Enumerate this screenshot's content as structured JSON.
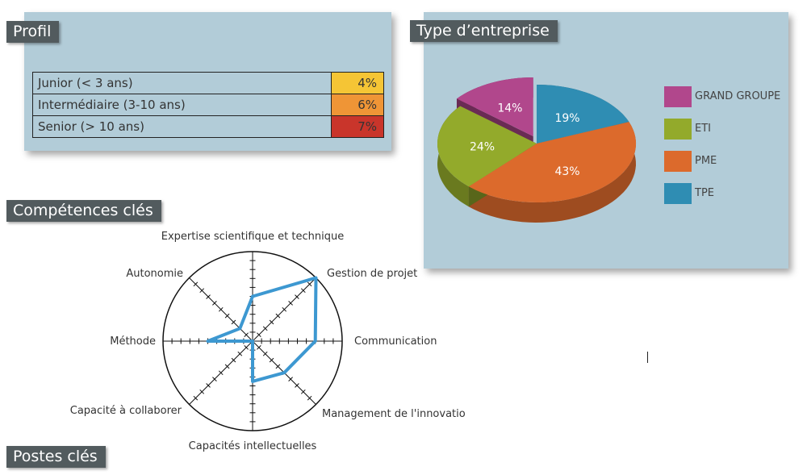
{
  "sections": {
    "profil": "Profil",
    "type_entreprise": "Type d’entreprise",
    "competences": "Compétences clés",
    "postes": "Postes clés"
  },
  "profil_table": [
    {
      "label": "Junior (< 3 ans)",
      "value": "4%",
      "color": "#f5c535"
    },
    {
      "label": "Intermédiaire (3-10 ans)",
      "value": "6%",
      "color": "#ef9536"
    },
    {
      "label": "Senior (> 10 ans)",
      "value": "7%",
      "color": "#c9352b"
    }
  ],
  "chart_data": [
    {
      "type": "pie",
      "style": "3d",
      "categories": [
        "GRAND GROUPE",
        "ETI",
        "PME",
        "TPE"
      ],
      "values": [
        14,
        24,
        43,
        19
      ],
      "labels": [
        "14%",
        "24%",
        "43%",
        "19%"
      ],
      "colors": [
        "#b1478c",
        "#93aa2b",
        "#dc6a2c",
        "#2f8db3"
      ],
      "legend": "right",
      "exploded": [
        "GRAND GROUPE"
      ]
    },
    {
      "type": "radar",
      "axes": [
        "Expertise scientifique et technique",
        "Gestion de projet",
        "Communication",
        "Management de l'innovatio",
        "Capacités intellectuelles",
        "Capacité à collaborer",
        "Méthode",
        "Autonomie"
      ],
      "values": [
        0.5,
        1.0,
        0.7,
        0.5,
        0.45,
        0.0,
        0.5,
        0.2
      ],
      "max": 1,
      "ticks_per_axis": 10,
      "series_color": "#3d98d1"
    }
  ]
}
